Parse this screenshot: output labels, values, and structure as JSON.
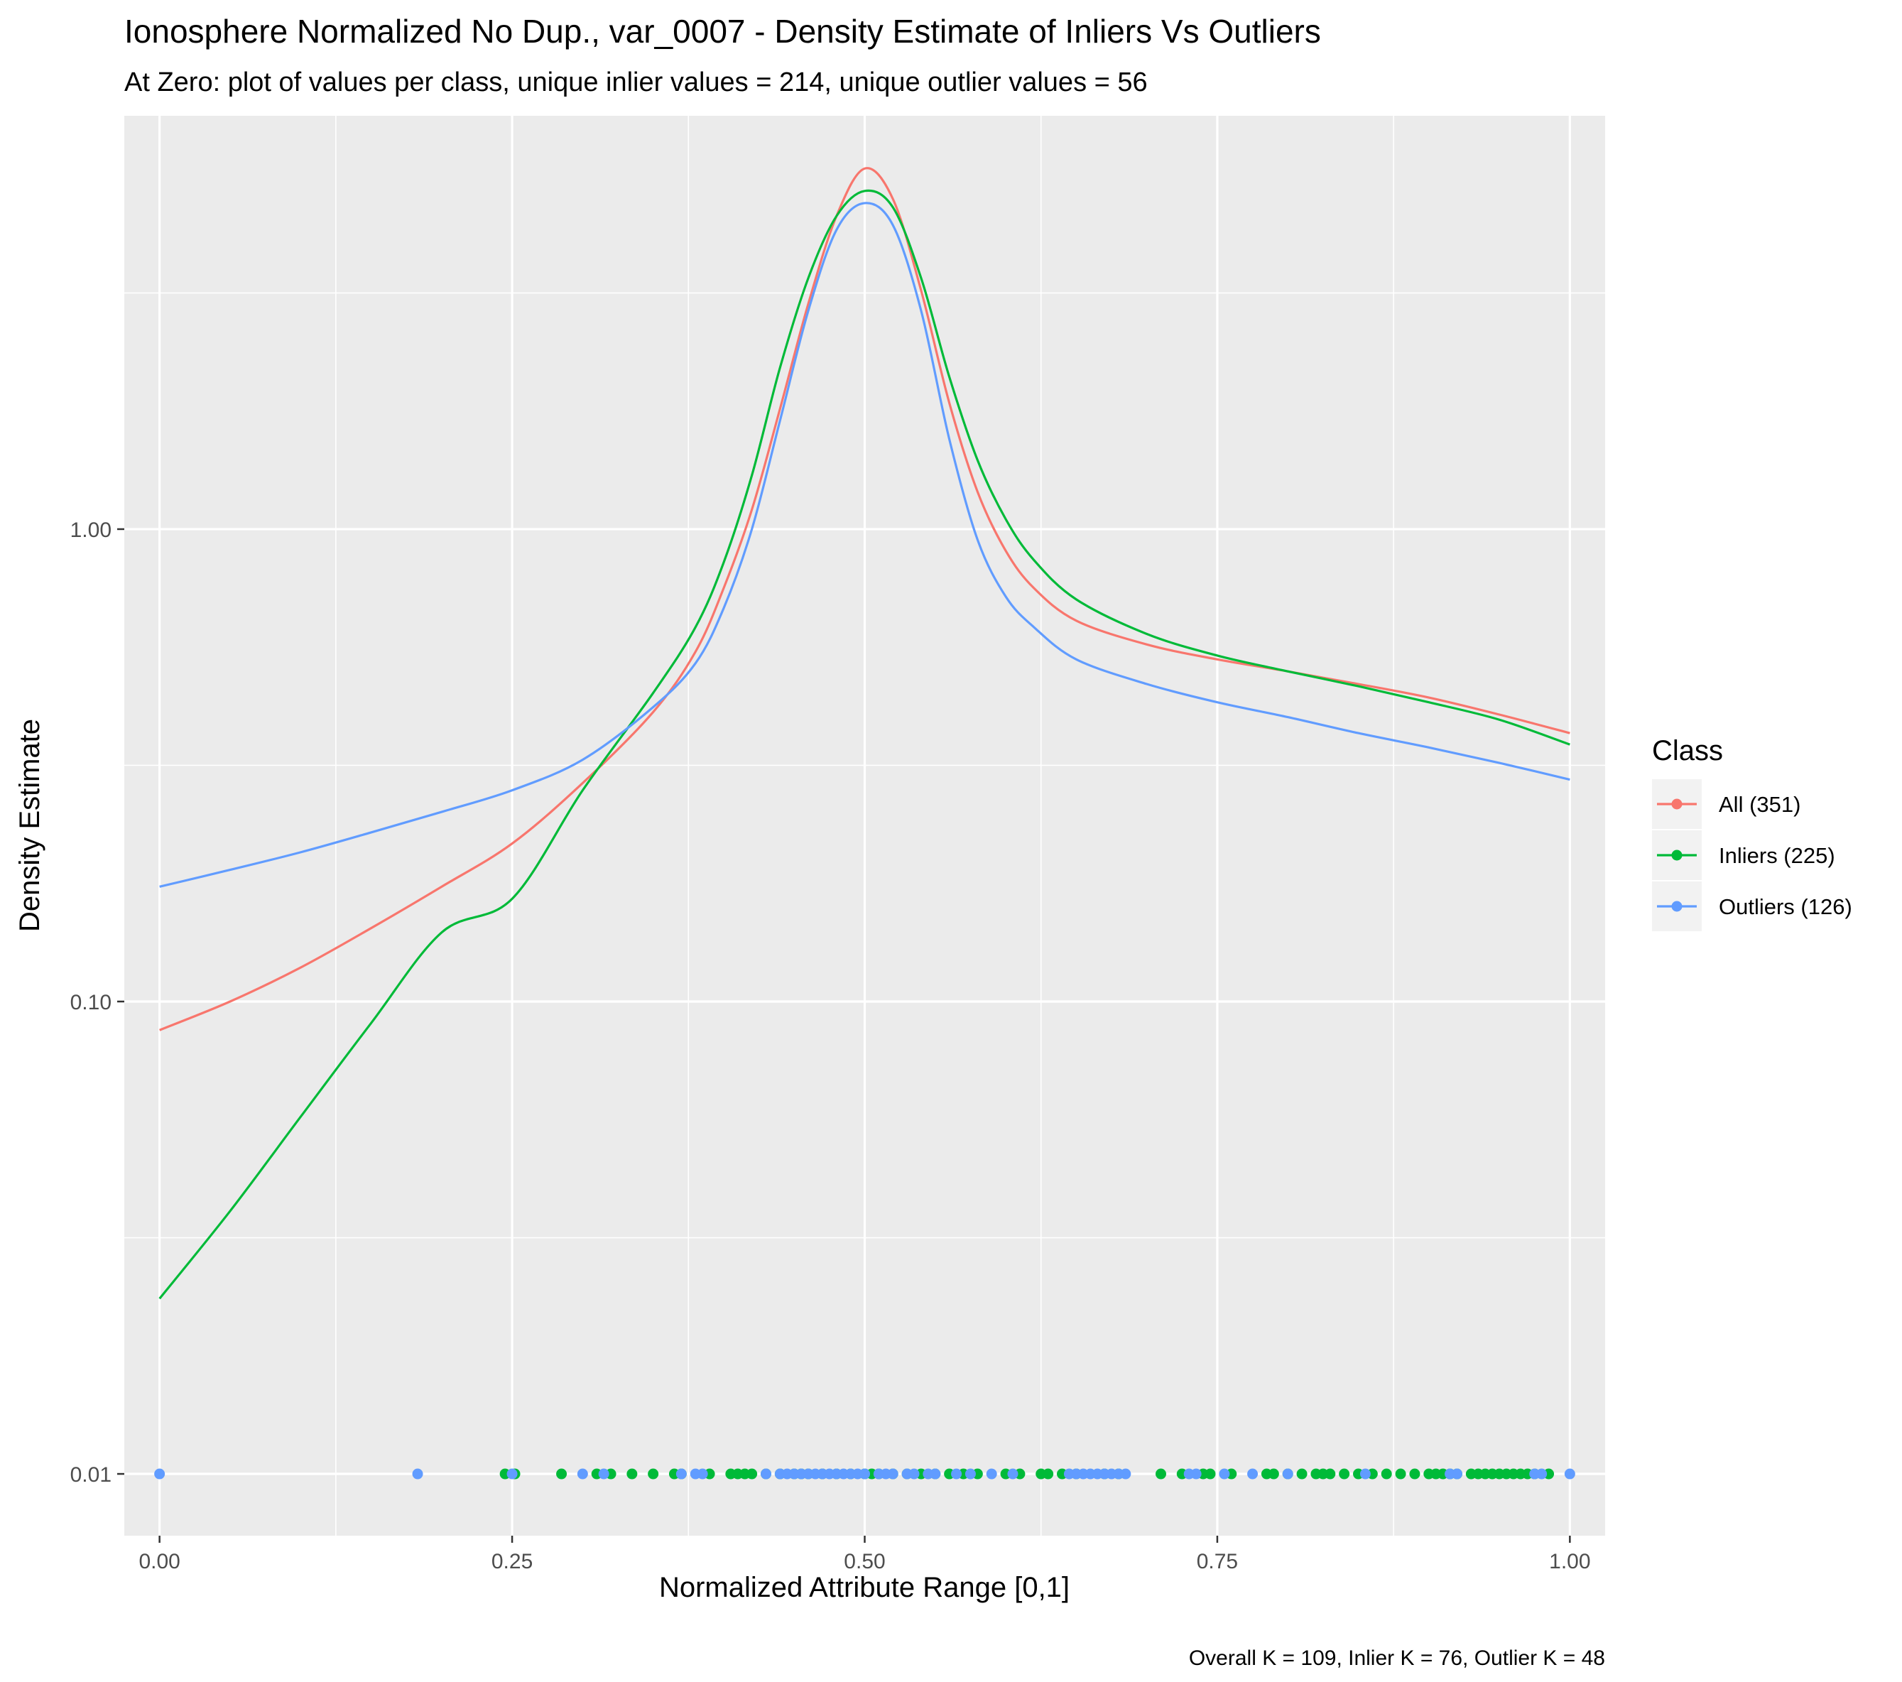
{
  "chart_data": {
    "type": "line",
    "title": "Ionosphere Normalized No Dup., var_0007 - Density Estimate of Inliers Vs Outliers",
    "subtitle": "At Zero: plot of values per class, unique inlier values = 214, unique outlier values = 56",
    "xlabel": "Normalized Attribute Range [0,1]",
    "ylabel": "Density Estimate",
    "caption": "Overall K = 109, Inlier K = 76, Outlier K = 48",
    "x_ticks": [
      "0.00",
      "0.25",
      "0.50",
      "0.75",
      "1.00"
    ],
    "y_ticks": [
      "0.01",
      "0.10",
      "1.00"
    ],
    "xlim": [
      -0.025,
      1.025
    ],
    "ylim": [
      0.0074,
      7.5
    ],
    "y_scale": "log",
    "grid": true,
    "legend": {
      "title": "Class",
      "position": "right",
      "entries": [
        {
          "label": "All (351)",
          "color": "#F8766D"
        },
        {
          "label": "Inliers (225)",
          "color": "#00BA38"
        },
        {
          "label": "Outliers (126)",
          "color": "#619CFF"
        }
      ]
    },
    "series": [
      {
        "name": "All (351)",
        "color": "#F8766D",
        "x": [
          0.0,
          0.05,
          0.1,
          0.15,
          0.2,
          0.25,
          0.3,
          0.35,
          0.38,
          0.4,
          0.42,
          0.44,
          0.46,
          0.48,
          0.5,
          0.52,
          0.54,
          0.56,
          0.58,
          0.6,
          0.62,
          0.65,
          0.7,
          0.75,
          0.8,
          0.85,
          0.9,
          0.95,
          1.0
        ],
        "y": [
          0.087,
          0.1,
          0.118,
          0.143,
          0.175,
          0.216,
          0.29,
          0.41,
          0.55,
          0.75,
          1.1,
          1.8,
          3.0,
          4.6,
          5.8,
          5.0,
          3.2,
          1.85,
          1.2,
          0.9,
          0.75,
          0.64,
          0.57,
          0.53,
          0.5,
          0.47,
          0.44,
          0.405,
          0.37
        ]
      },
      {
        "name": "Inliers (225)",
        "color": "#00BA38",
        "x": [
          0.0,
          0.05,
          0.1,
          0.15,
          0.2,
          0.25,
          0.3,
          0.35,
          0.38,
          0.4,
          0.42,
          0.44,
          0.46,
          0.48,
          0.5,
          0.52,
          0.54,
          0.56,
          0.58,
          0.6,
          0.62,
          0.65,
          0.7,
          0.75,
          0.8,
          0.85,
          0.9,
          0.95,
          1.0
        ],
        "y": [
          0.0235,
          0.036,
          0.057,
          0.09,
          0.14,
          0.165,
          0.28,
          0.45,
          0.62,
          0.85,
          1.3,
          2.2,
          3.4,
          4.6,
          5.2,
          4.8,
          3.4,
          2.1,
          1.4,
          1.05,
          0.86,
          0.71,
          0.6,
          0.54,
          0.5,
          0.465,
          0.43,
          0.395,
          0.35
        ]
      },
      {
        "name": "Outliers (126)",
        "color": "#619CFF",
        "x": [
          0.0,
          0.05,
          0.1,
          0.15,
          0.2,
          0.25,
          0.3,
          0.35,
          0.38,
          0.4,
          0.42,
          0.44,
          0.46,
          0.48,
          0.5,
          0.52,
          0.54,
          0.56,
          0.58,
          0.6,
          0.62,
          0.65,
          0.7,
          0.75,
          0.8,
          0.85,
          0.9,
          0.95,
          1.0
        ],
        "y": [
          0.175,
          0.19,
          0.207,
          0.228,
          0.252,
          0.28,
          0.325,
          0.42,
          0.52,
          0.68,
          1.0,
          1.7,
          2.9,
          4.3,
          4.9,
          4.4,
          2.9,
          1.55,
          0.95,
          0.72,
          0.62,
          0.53,
          0.47,
          0.43,
          0.4,
          0.37,
          0.345,
          0.32,
          0.295
        ]
      }
    ],
    "rug": {
      "y": 0.01,
      "inliers_color": "#00BA38",
      "outliers_color": "#619CFF",
      "inliers_x": [
        0.245,
        0.252,
        0.285,
        0.31,
        0.32,
        0.335,
        0.35,
        0.365,
        0.37,
        0.39,
        0.405,
        0.41,
        0.415,
        0.42,
        0.43,
        0.44,
        0.45,
        0.455,
        0.46,
        0.47,
        0.48,
        0.49,
        0.5,
        0.505,
        0.51,
        0.52,
        0.53,
        0.54,
        0.55,
        0.56,
        0.57,
        0.58,
        0.6,
        0.61,
        0.625,
        0.63,
        0.64,
        0.65,
        0.67,
        0.68,
        0.71,
        0.725,
        0.74,
        0.745,
        0.76,
        0.785,
        0.79,
        0.8,
        0.81,
        0.82,
        0.825,
        0.83,
        0.84,
        0.85,
        0.86,
        0.87,
        0.88,
        0.89,
        0.9,
        0.905,
        0.91,
        0.915,
        0.92,
        0.93,
        0.935,
        0.94,
        0.945,
        0.95,
        0.955,
        0.96,
        0.965,
        0.97,
        0.975,
        0.985
      ],
      "outliers_x": [
        0.0,
        0.183,
        0.25,
        0.3,
        0.315,
        0.37,
        0.38,
        0.385,
        0.43,
        0.44,
        0.445,
        0.45,
        0.455,
        0.46,
        0.465,
        0.47,
        0.475,
        0.48,
        0.485,
        0.49,
        0.495,
        0.5,
        0.51,
        0.515,
        0.52,
        0.53,
        0.535,
        0.545,
        0.55,
        0.565,
        0.575,
        0.59,
        0.605,
        0.645,
        0.65,
        0.655,
        0.66,
        0.665,
        0.67,
        0.675,
        0.68,
        0.685,
        0.73,
        0.735,
        0.755,
        0.775,
        0.8,
        0.855,
        0.915,
        0.92,
        0.975,
        0.98,
        1.0
      ]
    }
  }
}
